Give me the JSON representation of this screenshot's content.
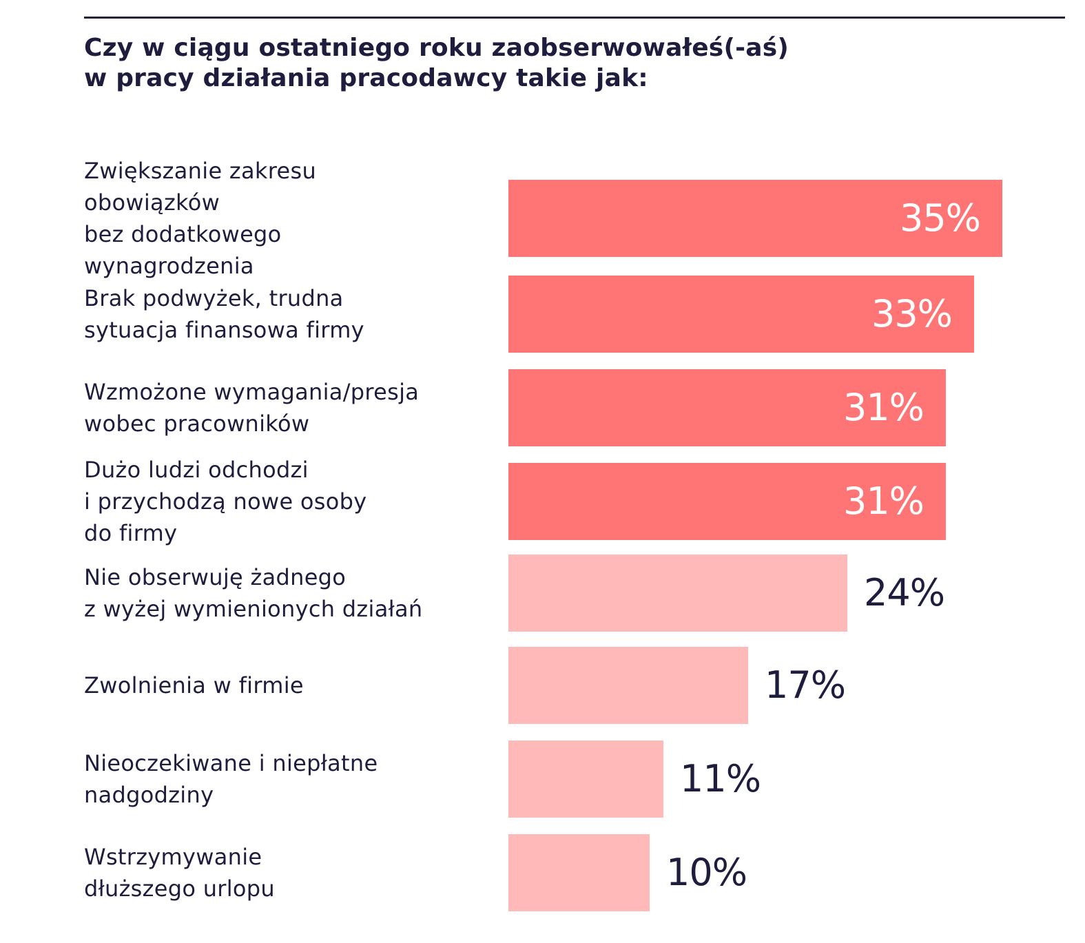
{
  "title": {
    "line1": "Czy w ciągu ostatniego roku zaobserwowałeś(-aś)",
    "line2": "w pracy działania pracodawcy takie jak:"
  },
  "colors": {
    "text": "#1f1d3d",
    "bar_strong": "#ff7575",
    "bar_light": "#ffb9b9",
    "rule": "#1f1d3d"
  },
  "chart_data": {
    "type": "bar",
    "orientation": "horizontal",
    "title": "Czy w ciągu ostatniego roku zaobserwowałeś(-aś) w pracy działania pracodawcy takie jak:",
    "categories": [
      "Zwiększanie zakresu obowiązków bez dodatkowego wynagrodzenia",
      "Brak podwyżek, trudna sytuacja finansowa firmy",
      "Wzmożone wymagania/presja wobec pracowników",
      "Dużo ludzi odchodzi i przychodzą nowe osoby do firmy",
      "Nie obserwuję żadnego z wyżej wymienionych działań",
      "Zwolnienia w firmie",
      "Nieoczekiwane i niepłatne nadgodziny",
      "Wstrzymywanie dłuższego urlopu"
    ],
    "category_lines": [
      [
        "Zwiększanie zakresu",
        "obowiązków",
        "bez dodatkowego",
        "wynagrodzenia"
      ],
      [
        "Brak podwyżek, trudna",
        "sytuacja finansowa firmy"
      ],
      [
        "Wzmożone wymagania/presja",
        "wobec pracowników"
      ],
      [
        "Dużo ludzi odchodzi",
        "i przychodzą nowe osoby",
        "do firmy"
      ],
      [
        "Nie obserwuję żadnego",
        "z wyżej wymienionych działań"
      ],
      [
        "Zwolnienia w firmie"
      ],
      [
        "Nieoczekiwane i niepłatne",
        "nadgodziny"
      ],
      [
        "Wstrzymywanie",
        "dłuższego urlopu"
      ]
    ],
    "values": [
      35,
      33,
      31,
      31,
      24,
      17,
      11,
      10
    ],
    "value_labels": [
      "35%",
      "33%",
      "31%",
      "31%",
      "24%",
      "17%",
      "11%",
      "10%"
    ],
    "highlight": [
      true,
      true,
      true,
      true,
      false,
      false,
      false,
      false
    ],
    "unit": "%",
    "xlim": [
      0,
      35
    ],
    "grid": false,
    "legend": "none"
  }
}
